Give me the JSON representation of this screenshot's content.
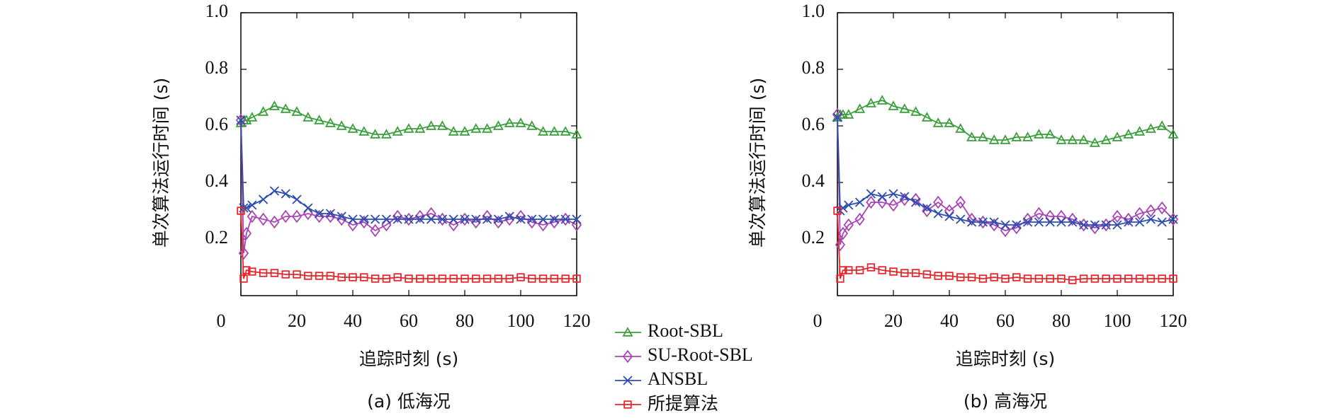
{
  "chart_data": [
    {
      "type": "line",
      "caption": "(a) 低海况",
      "xlabel": "追踪时刻 (s)",
      "ylabel": "单次算法运行时间 (s)",
      "xlim": [
        0,
        120
      ],
      "ylim": [
        0,
        1
      ],
      "xticks": [
        0,
        20,
        40,
        60,
        80,
        100,
        120
      ],
      "yticks": [
        0.2,
        0.4,
        0.6,
        0.8,
        {
          "value": 1,
          "label": "1.0"
        }
      ],
      "x": [
        0,
        1,
        2,
        4,
        8,
        12,
        16,
        20,
        24,
        28,
        32,
        36,
        40,
        44,
        48,
        52,
        56,
        60,
        64,
        68,
        72,
        76,
        80,
        84,
        88,
        92,
        96,
        100,
        104,
        108,
        112,
        116,
        120
      ],
      "series": [
        {
          "name": "Root-SBL",
          "color": "#3a9e3a",
          "marker": "triangle",
          "values": [
            0.61,
            0.62,
            0.62,
            0.63,
            0.65,
            0.67,
            0.66,
            0.65,
            0.63,
            0.62,
            0.61,
            0.6,
            0.59,
            0.58,
            0.57,
            0.57,
            0.58,
            0.59,
            0.59,
            0.6,
            0.6,
            0.58,
            0.58,
            0.59,
            0.59,
            0.6,
            0.61,
            0.61,
            0.6,
            0.58,
            0.58,
            0.58,
            0.57
          ]
        },
        {
          "name": "SU-Root-SBL",
          "color": "#a844b4",
          "marker": "diamond",
          "values": [
            0.62,
            0.15,
            0.22,
            0.28,
            0.27,
            0.26,
            0.28,
            0.28,
            0.29,
            0.28,
            0.28,
            0.27,
            0.25,
            0.26,
            0.23,
            0.25,
            0.28,
            0.27,
            0.28,
            0.29,
            0.27,
            0.25,
            0.27,
            0.26,
            0.28,
            0.26,
            0.27,
            0.28,
            0.26,
            0.25,
            0.26,
            0.27,
            0.25
          ]
        },
        {
          "name": "ANSBL",
          "color": "#2b4eae",
          "marker": "cross",
          "values": [
            0.62,
            0.31,
            0.31,
            0.32,
            0.34,
            0.37,
            0.36,
            0.34,
            0.31,
            0.29,
            0.29,
            0.28,
            0.27,
            0.27,
            0.27,
            0.27,
            0.27,
            0.27,
            0.27,
            0.27,
            0.27,
            0.27,
            0.27,
            0.27,
            0.27,
            0.27,
            0.28,
            0.27,
            0.27,
            0.27,
            0.27,
            0.27,
            0.27
          ]
        },
        {
          "name": "所提算法",
          "color": "#e8252b",
          "marker": "square",
          "values": [
            0.3,
            0.06,
            0.09,
            0.085,
            0.08,
            0.08,
            0.075,
            0.075,
            0.07,
            0.07,
            0.07,
            0.065,
            0.065,
            0.065,
            0.06,
            0.06,
            0.065,
            0.06,
            0.06,
            0.06,
            0.06,
            0.06,
            0.06,
            0.06,
            0.06,
            0.06,
            0.06,
            0.065,
            0.06,
            0.06,
            0.06,
            0.06,
            0.06
          ]
        }
      ]
    },
    {
      "type": "line",
      "caption": "(b) 高海况",
      "xlabel": "追踪时刻 (s)",
      "ylabel": "单次算法运行时间 (s)",
      "xlim": [
        0,
        120
      ],
      "ylim": [
        0,
        1
      ],
      "xticks": [
        0,
        20,
        40,
        60,
        80,
        100,
        120
      ],
      "yticks": [
        0.2,
        0.4,
        0.6,
        0.8,
        {
          "value": 1,
          "label": "1.0"
        }
      ],
      "x": [
        0,
        1,
        2,
        4,
        8,
        12,
        16,
        20,
        24,
        28,
        32,
        36,
        40,
        44,
        48,
        52,
        56,
        60,
        64,
        68,
        72,
        76,
        80,
        84,
        88,
        92,
        96,
        100,
        104,
        108,
        112,
        116,
        120
      ],
      "series": [
        {
          "color": "#3a9e3a",
          "marker": "triangle",
          "values": [
            0.63,
            0.64,
            0.64,
            0.64,
            0.66,
            0.68,
            0.69,
            0.67,
            0.66,
            0.65,
            0.63,
            0.61,
            0.61,
            0.59,
            0.56,
            0.56,
            0.55,
            0.55,
            0.56,
            0.56,
            0.57,
            0.57,
            0.55,
            0.55,
            0.55,
            0.54,
            0.55,
            0.56,
            0.57,
            0.58,
            0.59,
            0.6,
            0.57
          ]
        },
        {
          "color": "#a844b4",
          "marker": "diamond",
          "values": [
            0.64,
            0.18,
            0.22,
            0.25,
            0.27,
            0.33,
            0.33,
            0.32,
            0.34,
            0.34,
            0.3,
            0.33,
            0.3,
            0.33,
            0.27,
            0.26,
            0.25,
            0.23,
            0.24,
            0.27,
            0.29,
            0.28,
            0.28,
            0.27,
            0.25,
            0.24,
            0.25,
            0.28,
            0.27,
            0.29,
            0.3,
            0.31,
            0.27
          ]
        },
        {
          "color": "#2b4eae",
          "marker": "cross",
          "values": [
            0.63,
            0.3,
            0.31,
            0.32,
            0.33,
            0.36,
            0.35,
            0.36,
            0.35,
            0.33,
            0.31,
            0.29,
            0.28,
            0.27,
            0.26,
            0.26,
            0.26,
            0.25,
            0.25,
            0.26,
            0.26,
            0.26,
            0.26,
            0.26,
            0.25,
            0.25,
            0.25,
            0.25,
            0.26,
            0.26,
            0.27,
            0.26,
            0.27
          ]
        },
        {
          "color": "#e8252b",
          "marker": "square",
          "values": [
            0.3,
            0.06,
            0.09,
            0.09,
            0.09,
            0.1,
            0.09,
            0.085,
            0.08,
            0.08,
            0.075,
            0.07,
            0.07,
            0.065,
            0.065,
            0.06,
            0.065,
            0.06,
            0.065,
            0.06,
            0.06,
            0.06,
            0.06,
            0.055,
            0.06,
            0.06,
            0.06,
            0.06,
            0.06,
            0.06,
            0.06,
            0.06,
            0.06
          ]
        }
      ]
    }
  ]
}
